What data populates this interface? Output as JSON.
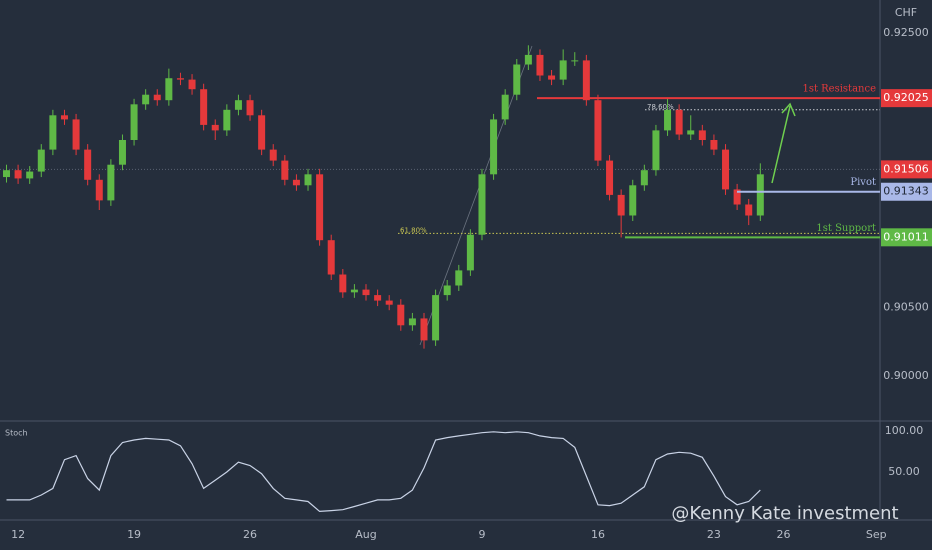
{
  "chart_data": [
    {
      "type": "candlestick",
      "currency": "CHF",
      "watermark": "@Kenny Kate investment",
      "up_color": "#5fb946",
      "down_color": "#e5393b",
      "x": [
        -0.5,
        0,
        0.5,
        1,
        1.5,
        2,
        2.5,
        3,
        3.5,
        4,
        4.5,
        5,
        5.5,
        6,
        6.5,
        7,
        7.5,
        8,
        8.5,
        9,
        9.5,
        10,
        10.5,
        11,
        11.5,
        12,
        12.5,
        13,
        13.5,
        14,
        14.5,
        15,
        15.5,
        16,
        16.5,
        17,
        17.5,
        18,
        18.5,
        19,
        19.5,
        20,
        20.5,
        21,
        21.5,
        22,
        22.5,
        23,
        23.5,
        24,
        24.5,
        25,
        25.5,
        26,
        26.5,
        27,
        27.5,
        28,
        28.5,
        29,
        29.5,
        30,
        30.5,
        31,
        31.5,
        32
      ],
      "open": [
        0.9145,
        0.915,
        0.9144,
        0.9149,
        0.9165,
        0.919,
        0.9187,
        0.9165,
        0.9143,
        0.9128,
        0.9154,
        0.9172,
        0.9198,
        0.9205,
        0.9201,
        0.9217,
        0.9216,
        0.9209,
        0.9183,
        0.9179,
        0.9194,
        0.9201,
        0.919,
        0.9165,
        0.9157,
        0.9143,
        0.9139,
        0.9147,
        0.9099,
        0.9074,
        0.9061,
        0.9063,
        0.9059,
        0.9055,
        0.9052,
        0.9037,
        0.9042,
        0.9026,
        0.9059,
        0.9066,
        0.9077,
        0.9103,
        0.9147,
        0.9187,
        0.9205,
        0.9227,
        0.9234,
        0.9219,
        0.9216,
        0.923,
        0.923,
        0.9201,
        0.9157,
        0.9132,
        0.9117,
        0.9139,
        0.915,
        0.9179,
        0.9194,
        0.9176,
        0.9179,
        0.9172,
        0.9165,
        0.9136,
        0.9125,
        0.9117
      ],
      "high": [
        0.9154,
        0.9154,
        0.9153,
        0.9169,
        0.9194,
        0.9194,
        0.9191,
        0.9169,
        0.9147,
        0.9158,
        0.9176,
        0.9202,
        0.9209,
        0.9209,
        0.9224,
        0.9221,
        0.922,
        0.9213,
        0.9187,
        0.9198,
        0.9205,
        0.9205,
        0.9194,
        0.9169,
        0.9161,
        0.9147,
        0.9151,
        0.9151,
        0.9103,
        0.9078,
        0.9067,
        0.9067,
        0.9063,
        0.9059,
        0.9056,
        0.9046,
        0.9046,
        0.9063,
        0.907,
        0.9081,
        0.9107,
        0.9151,
        0.9191,
        0.9209,
        0.9231,
        0.9241,
        0.9238,
        0.9223,
        0.9238,
        0.9236,
        0.9234,
        0.9205,
        0.9161,
        0.9136,
        0.9143,
        0.9154,
        0.9183,
        0.9203,
        0.9198,
        0.919,
        0.9183,
        0.9176,
        0.9169,
        0.914,
        0.9129,
        0.9155
      ],
      "low": [
        0.9141,
        0.914,
        0.914,
        0.9145,
        0.9161,
        0.9183,
        0.9161,
        0.9139,
        0.9121,
        0.9124,
        0.915,
        0.9168,
        0.9194,
        0.9197,
        0.9197,
        0.9212,
        0.9205,
        0.9179,
        0.9172,
        0.9175,
        0.919,
        0.9186,
        0.9161,
        0.9153,
        0.9139,
        0.9135,
        0.9135,
        0.9095,
        0.907,
        0.9057,
        0.9057,
        0.9055,
        0.9051,
        0.9048,
        0.9033,
        0.9033,
        0.902,
        0.9022,
        0.9055,
        0.9062,
        0.9073,
        0.9099,
        0.9143,
        0.9183,
        0.9201,
        0.9223,
        0.9215,
        0.9212,
        0.9212,
        0.9226,
        0.9197,
        0.9153,
        0.9128,
        0.9101,
        0.9113,
        0.9135,
        0.9146,
        0.9175,
        0.9172,
        0.9172,
        0.9168,
        0.9161,
        0.9132,
        0.9121,
        0.911,
        0.9113
      ],
      "close": [
        0.915,
        0.9144,
        0.9149,
        0.9165,
        0.919,
        0.9187,
        0.9165,
        0.9143,
        0.9128,
        0.9154,
        0.9172,
        0.9198,
        0.9205,
        0.9201,
        0.9217,
        0.9216,
        0.9209,
        0.9183,
        0.9179,
        0.9194,
        0.9201,
        0.919,
        0.9165,
        0.9157,
        0.9143,
        0.9139,
        0.9147,
        0.9099,
        0.9074,
        0.9061,
        0.9063,
        0.9059,
        0.9055,
        0.9052,
        0.9037,
        0.9042,
        0.9026,
        0.9059,
        0.9066,
        0.9077,
        0.9103,
        0.9147,
        0.9187,
        0.9205,
        0.9227,
        0.9234,
        0.9219,
        0.9216,
        0.923,
        0.923,
        0.9201,
        0.9157,
        0.9132,
        0.9117,
        0.9139,
        0.915,
        0.9179,
        0.9194,
        0.9176,
        0.9179,
        0.9172,
        0.9165,
        0.9136,
        0.9125,
        0.9117,
        0.9147
      ],
      "xlim": [
        -0.78,
        37.16
      ],
      "xticks": [
        {
          "value": 0,
          "label": "12"
        },
        {
          "value": 5,
          "label": "19"
        },
        {
          "value": 10,
          "label": "26"
        },
        {
          "value": 15,
          "label": "Aug"
        },
        {
          "value": 20,
          "label": "9"
        },
        {
          "value": 25,
          "label": "16"
        },
        {
          "value": 30,
          "label": "23"
        },
        {
          "value": 33,
          "label": "26"
        },
        {
          "value": 37,
          "label": "Sep"
        }
      ],
      "ylim": [
        0.8968,
        0.9274
      ],
      "yticks": [
        {
          "value": 0.925,
          "label": "0.92500"
        },
        {
          "value": 0.905,
          "label": "0.90500"
        },
        {
          "value": 0.9,
          "label": "0.90000"
        }
      ],
      "levels": [
        {
          "name": "1st Resistance",
          "value": 0.92025,
          "color": "#e5393b"
        },
        {
          "name": "Pivot",
          "value": 0.91343,
          "color": "#a9b8e8"
        },
        {
          "name": "1st Support",
          "value": 0.91011,
          "color": "#5fb946"
        }
      ],
      "last_price": {
        "value": 0.91506,
        "color": "#e5393b"
      },
      "fib_levels": [
        {
          "label": "78.60%",
          "value": 0.9194,
          "color": "#c9ccd2"
        },
        {
          "label": "61.80%",
          "value": 0.9104,
          "color": "#c8c552"
        }
      ]
    },
    {
      "type": "line",
      "title": "Stoch",
      "color": "#c9d3e6",
      "x": [
        -0.5,
        0,
        0.5,
        1,
        1.5,
        2,
        2.5,
        3,
        3.5,
        4,
        4.5,
        5,
        5.5,
        6,
        6.5,
        7,
        7.5,
        8,
        8.5,
        9,
        9.5,
        10,
        10.5,
        11,
        11.5,
        12,
        12.5,
        13,
        13.5,
        14,
        14.5,
        15,
        15.5,
        16,
        16.5,
        17,
        17.5,
        18,
        18.5,
        19,
        19.5,
        20,
        20.5,
        21,
        21.5,
        22,
        22.5,
        23,
        23.5,
        24,
        24.5,
        25,
        25.5,
        26,
        26.5,
        27,
        27.5,
        28,
        28.5,
        29,
        29.5,
        30,
        30.5,
        31,
        31.5,
        32
      ],
      "values": [
        16,
        16,
        16,
        22,
        30,
        65,
        70,
        42,
        28,
        70,
        86,
        89,
        91,
        90,
        89,
        82,
        60,
        30,
        40,
        50,
        62,
        58,
        48,
        30,
        18,
        16,
        14,
        2,
        3,
        4,
        8,
        12,
        16,
        16,
        18,
        28,
        55,
        89,
        92,
        94,
        96,
        98,
        99,
        98,
        99,
        98,
        94,
        92,
        91,
        80,
        45,
        10,
        9,
        12,
        22,
        32,
        65,
        72,
        74,
        73,
        68,
        45,
        20,
        10,
        14,
        28
      ],
      "ylim": [
        -8.5,
        111
      ],
      "yticks": [
        {
          "value": 100,
          "label": "100.00"
        },
        {
          "value": 50,
          "label": "50.00"
        }
      ]
    }
  ]
}
